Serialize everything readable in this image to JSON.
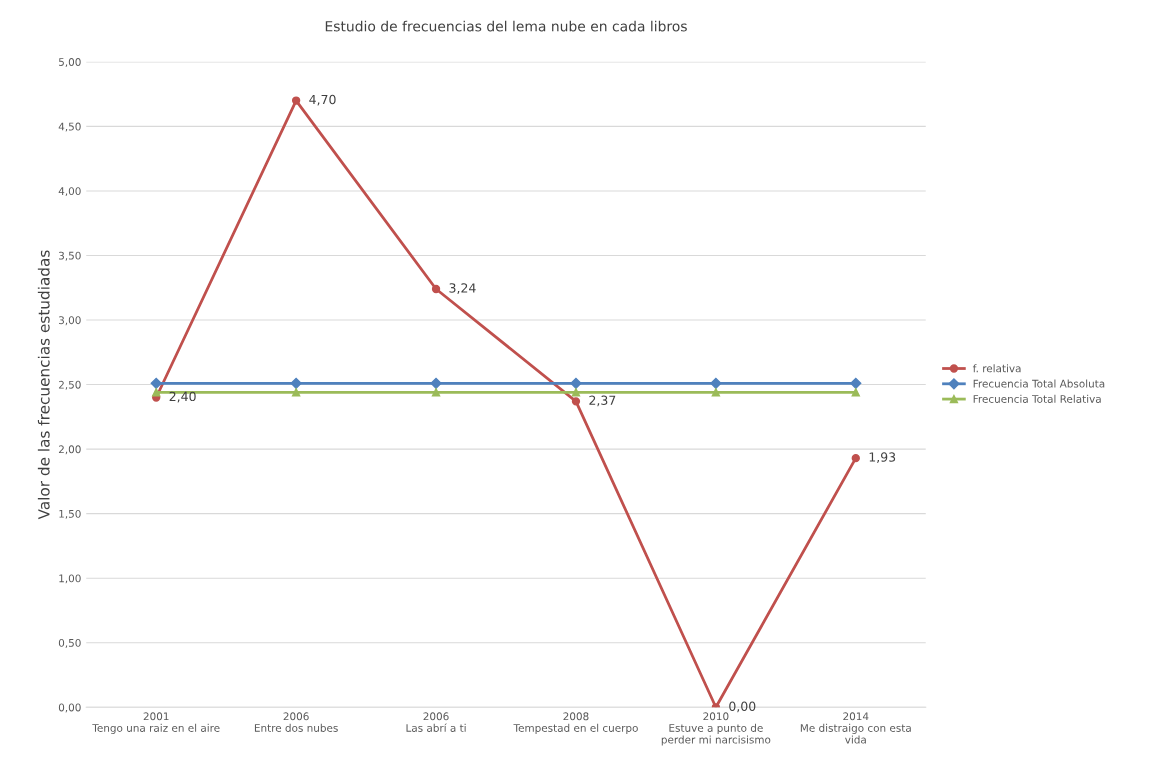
{
  "chart_data": {
    "type": "line",
    "title": "Estudio de frecuencias del lema nube en cada libros",
    "ylabel": "Valor de las frecuencias estudiadas",
    "categories": [
      "2001\nTengo una raiz en el aire",
      "2006\nEntre dos nubes",
      "2006\nLas abrí a ti",
      "2008\nTempestad en el cuerpo",
      "2010\nEstuve a punto de\nperder mi narcisismo",
      "2014\nMe distraigo con esta\nvida"
    ],
    "series": [
      {
        "name": "f. relativa",
        "color": "#c0504d",
        "marker": "circle",
        "values": [
          2.4,
          4.7,
          3.24,
          2.37,
          0.0,
          1.93
        ],
        "value_labels": [
          "2,40",
          "4,70",
          "3,24",
          "2,37",
          "0,00",
          "1,93"
        ]
      },
      {
        "name": "Frecuencia Total Absoluta",
        "color": "#4f81bd",
        "marker": "diamond",
        "values": [
          2.51,
          2.51,
          2.51,
          2.51,
          2.51,
          2.51
        ]
      },
      {
        "name": "Frecuencia Total Relativa",
        "color": "#9bbb59",
        "marker": "triangle",
        "values": [
          2.44,
          2.44,
          2.44,
          2.44,
          2.44,
          2.44
        ]
      }
    ],
    "ylim": [
      0,
      5
    ],
    "yticks": [
      {
        "value": 0,
        "label": "0,00"
      },
      {
        "value": 0.5,
        "label": "0,50"
      },
      {
        "value": 1,
        "label": "1,00"
      },
      {
        "value": 1.5,
        "label": "1,50"
      },
      {
        "value": 2,
        "label": "2,00"
      },
      {
        "value": 2.5,
        "label": "2,50"
      },
      {
        "value": 3,
        "label": "3,00"
      },
      {
        "value": 3.5,
        "label": "3,50"
      },
      {
        "value": 4,
        "label": "4,00"
      },
      {
        "value": 4.5,
        "label": "4,50"
      },
      {
        "value": 5,
        "label": "5,00"
      }
    ],
    "grid": "y",
    "legend": "right"
  }
}
